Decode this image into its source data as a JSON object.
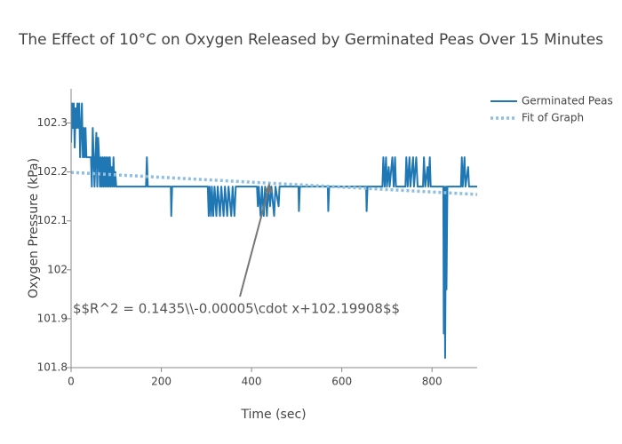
{
  "chart_data": {
    "type": "line",
    "title": "The Effect of 10°C on Oxygen Released by Germinated Peas Over 15 Minutes",
    "x_label": "Time (sec)",
    "y_label": "Oxygen Pressure (kPa)",
    "xlim": [
      0,
      900
    ],
    "xticks": [
      0,
      200,
      400,
      600,
      800
    ],
    "ylim": [
      101.8,
      102.37
    ],
    "yticks": [
      101.8,
      101.9,
      102,
      102.1,
      102.2,
      102.3
    ],
    "legend": "top-right",
    "annotation": "$$R^2 = 0.1435\\\\-0.00005\\cdot x+102.19908$$",
    "series": [
      {
        "name": "Germinated Peas",
        "color": "#1f77b4",
        "style": "solid",
        "x": [
          0,
          2,
          4,
          6,
          8,
          10,
          12,
          14,
          16,
          18,
          20,
          22,
          24,
          26,
          28,
          30,
          32,
          34,
          44,
          46,
          48,
          50,
          52,
          54,
          56,
          58,
          60,
          62,
          64,
          66,
          68,
          70,
          72,
          74,
          76,
          78,
          80,
          82,
          84,
          86,
          88,
          90,
          92,
          94,
          96,
          98,
          100,
          166,
          168,
          170,
          221,
          222,
          224,
          303,
          305,
          307,
          310,
          312,
          315,
          318,
          322,
          325,
          330,
          333,
          338,
          341,
          346,
          349,
          355,
          358,
          362,
          365,
          412,
          414,
          416,
          420,
          423,
          427,
          430,
          434,
          437,
          441,
          444,
          450,
          453,
          460,
          462,
          504,
          505,
          507,
          569,
          570,
          572,
          654,
          655,
          657,
          690,
          692,
          695,
          698,
          700,
          704,
          706,
          712,
          715,
          718,
          720,
          741,
          743,
          746,
          750,
          752,
          758,
          760,
          765,
          768,
          780,
          782,
          785,
          790,
          792,
          795,
          797,
          825,
          826,
          827,
          829,
          831,
          832,
          834,
          864,
          866,
          868,
          872,
          874,
          880,
          882,
          900
        ],
        "values": [
          102.26,
          102.34,
          102.29,
          102.34,
          102.25,
          102.33,
          102.29,
          102.34,
          102.29,
          102.34,
          102.23,
          102.29,
          102.34,
          102.23,
          102.29,
          102.23,
          102.29,
          102.23,
          102.23,
          102.17,
          102.29,
          102.23,
          102.17,
          102.23,
          102.28,
          102.17,
          102.27,
          102.23,
          102.17,
          102.23,
          102.17,
          102.23,
          102.17,
          102.23,
          102.17,
          102.23,
          102.17,
          102.23,
          102.17,
          102.23,
          102.17,
          102.21,
          102.17,
          102.23,
          102.17,
          102.2,
          102.17,
          102.17,
          102.23,
          102.17,
          102.17,
          102.11,
          102.17,
          102.17,
          102.11,
          102.17,
          102.11,
          102.17,
          102.11,
          102.17,
          102.11,
          102.17,
          102.11,
          102.17,
          102.11,
          102.17,
          102.11,
          102.17,
          102.11,
          102.17,
          102.11,
          102.17,
          102.17,
          102.13,
          102.17,
          102.11,
          102.17,
          102.11,
          102.17,
          102.11,
          102.17,
          102.13,
          102.17,
          102.11,
          102.17,
          102.13,
          102.17,
          102.17,
          102.12,
          102.17,
          102.17,
          102.12,
          102.17,
          102.17,
          102.12,
          102.17,
          102.17,
          102.23,
          102.17,
          102.23,
          102.17,
          102.21,
          102.17,
          102.23,
          102.17,
          102.23,
          102.17,
          102.17,
          102.23,
          102.17,
          102.23,
          102.17,
          102.23,
          102.17,
          102.23,
          102.17,
          102.17,
          102.23,
          102.17,
          102.21,
          102.17,
          102.23,
          102.17,
          102.17,
          101.87,
          102.17,
          101.82,
          102.17,
          101.96,
          102.17,
          102.17,
          102.23,
          102.17,
          102.23,
          102.17,
          102.21,
          102.17,
          102.17
        ]
      },
      {
        "name": "Fit of Graph",
        "color": "#8fbfe0",
        "style": "dotted",
        "x": [
          0,
          900
        ],
        "values": [
          102.19908,
          102.15408
        ]
      }
    ]
  }
}
